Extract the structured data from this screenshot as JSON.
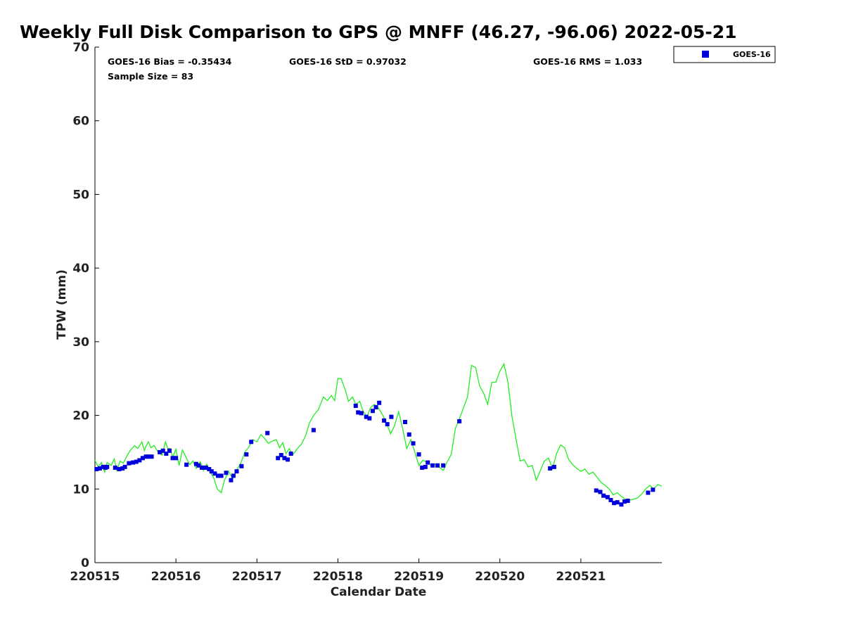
{
  "chart_data": {
    "type": "scatter",
    "title": "Weekly Full Disk Comparison to GPS @ MNFF (46.27, -96.06) 2022-05-21",
    "xlabel": "Calendar Date",
    "ylabel": "TPW (mm)",
    "xlim": [
      0,
      7
    ],
    "ylim": [
      0,
      70
    ],
    "yticks": [
      0,
      10,
      20,
      30,
      40,
      50,
      60,
      70
    ],
    "xticks": [
      {
        "value": 0,
        "label": "220515"
      },
      {
        "value": 1,
        "label": "220516"
      },
      {
        "value": 2,
        "label": "220517"
      },
      {
        "value": 3,
        "label": "220518"
      },
      {
        "value": 4,
        "label": "220519"
      },
      {
        "value": 5,
        "label": "220520"
      },
      {
        "value": 6,
        "label": "220521"
      }
    ],
    "stats": {
      "bias": "GOES-16 Bias = -0.35434",
      "std": "GOES-16 StD = 0.97032",
      "rms": "GOES-16 RMS = 1.033",
      "sample_size": "Sample Size = 83"
    },
    "legend": {
      "label": "GOES-16",
      "placement": "top-right-outside"
    },
    "colors": {
      "goes": "#0000dd",
      "gps": "#22ee22",
      "axis": "#000000"
    },
    "series": [
      {
        "name": "GOES-16",
        "kind": "scatter",
        "x": [
          0.02,
          0.06,
          0.1,
          0.13,
          0.15,
          0.25,
          0.3,
          0.34,
          0.37,
          0.42,
          0.47,
          0.51,
          0.55,
          0.59,
          0.63,
          0.66,
          0.7,
          0.8,
          0.84,
          0.88,
          0.92,
          0.96,
          1.0,
          1.13,
          1.25,
          1.28,
          1.32,
          1.37,
          1.41,
          1.44,
          1.48,
          1.52,
          1.56,
          1.62,
          1.68,
          1.71,
          1.75,
          1.81,
          1.87,
          1.93,
          2.13,
          2.26,
          2.3,
          2.34,
          2.38,
          2.42,
          2.7,
          3.22,
          3.25,
          3.29,
          3.35,
          3.39,
          3.43,
          3.47,
          3.51,
          3.57,
          3.61,
          3.66,
          3.83,
          3.88,
          3.93,
          4.0,
          4.04,
          4.08,
          4.11,
          4.17,
          4.23,
          4.3,
          4.5,
          5.62,
          5.67,
          6.19,
          6.24,
          6.28,
          6.33,
          6.37,
          6.41,
          6.45,
          6.5,
          6.54,
          6.58,
          6.83,
          6.89
        ],
        "y": [
          12.7,
          12.8,
          13.0,
          12.9,
          13.0,
          12.9,
          12.7,
          12.8,
          13.0,
          13.5,
          13.6,
          13.7,
          13.9,
          14.2,
          14.4,
          14.4,
          14.4,
          15.0,
          15.2,
          14.8,
          15.2,
          14.2,
          14.2,
          13.3,
          13.4,
          13.2,
          12.9,
          12.9,
          12.7,
          12.4,
          12.1,
          11.8,
          11.8,
          12.2,
          11.2,
          11.8,
          12.4,
          13.1,
          14.7,
          16.4,
          17.6,
          14.2,
          14.6,
          14.2,
          14.0,
          14.8,
          18.0,
          21.3,
          20.4,
          20.3,
          19.8,
          19.6,
          20.6,
          21.1,
          21.7,
          19.3,
          18.8,
          19.8,
          19.1,
          17.4,
          16.2,
          14.7,
          12.9,
          13.0,
          13.6,
          13.2,
          13.2,
          13.2,
          19.2,
          12.8,
          13.0,
          9.8,
          9.6,
          9.1,
          8.9,
          8.5,
          8.1,
          8.2,
          7.9,
          8.3,
          8.4,
          9.5,
          9.9
        ]
      },
      {
        "name": "GPS",
        "kind": "line",
        "x": [
          0.0,
          0.04,
          0.08,
          0.12,
          0.15,
          0.2,
          0.24,
          0.27,
          0.31,
          0.35,
          0.4,
          0.44,
          0.49,
          0.53,
          0.58,
          0.61,
          0.63,
          0.66,
          0.69,
          0.73,
          0.78,
          0.83,
          0.87,
          0.9,
          0.93,
          0.96,
          1.0,
          1.04,
          1.08,
          1.13,
          1.17,
          1.21,
          1.25,
          1.3,
          1.34,
          1.38,
          1.43,
          1.47,
          1.51,
          1.56,
          1.6,
          1.65,
          1.7,
          1.75,
          1.8,
          1.85,
          1.9,
          1.95,
          2.0,
          2.05,
          2.1,
          2.14,
          2.19,
          2.24,
          2.28,
          2.32,
          2.36,
          2.4,
          2.44,
          2.5,
          2.55,
          2.6,
          2.65,
          2.7,
          2.76,
          2.82,
          2.87,
          2.92,
          2.96,
          3.0,
          3.04,
          3.09,
          3.13,
          3.18,
          3.22,
          3.27,
          3.31,
          3.36,
          3.4,
          3.45,
          3.5,
          3.55,
          3.6,
          3.65,
          3.7,
          3.75,
          3.8,
          3.85,
          3.9,
          3.95,
          4.0,
          4.05,
          4.1,
          4.15,
          4.2,
          4.25,
          4.3,
          4.35,
          4.4,
          4.45,
          4.5,
          4.55,
          4.6,
          4.65,
          4.7,
          4.75,
          4.8,
          4.85,
          4.9,
          4.95,
          5.0,
          5.05,
          5.1,
          5.15,
          5.2,
          5.25,
          5.3,
          5.35,
          5.4,
          5.45,
          5.5,
          5.55,
          5.6,
          5.65,
          5.7,
          5.75,
          5.8,
          5.85,
          5.9,
          5.95,
          6.0,
          6.05,
          6.1,
          6.15,
          6.2,
          6.25,
          6.3,
          6.35,
          6.4,
          6.45,
          6.5,
          6.55,
          6.6,
          6.65,
          6.7,
          6.75,
          6.8,
          6.85,
          6.9,
          6.95,
          7.0
        ],
        "y": [
          13.9,
          13.0,
          13.6,
          12.3,
          13.6,
          13.2,
          14.1,
          12.5,
          13.8,
          13.5,
          14.6,
          15.3,
          15.9,
          15.5,
          16.4,
          15.2,
          15.8,
          16.4,
          15.6,
          15.9,
          15.0,
          14.6,
          16.4,
          15.5,
          15.5,
          14.3,
          15.4,
          13.2,
          15.3,
          14.2,
          13.3,
          13.8,
          12.8,
          13.7,
          12.5,
          13.4,
          12.2,
          11.4,
          10.0,
          9.5,
          11.2,
          12.4,
          11.4,
          12.6,
          13.5,
          15.0,
          15.7,
          16.7,
          16.4,
          17.4,
          16.8,
          16.2,
          16.5,
          16.7,
          15.6,
          16.3,
          14.8,
          15.5,
          14.6,
          15.5,
          16.1,
          17.2,
          19.0,
          20.0,
          20.8,
          22.5,
          22.0,
          22.7,
          22.0,
          25.0,
          25.0,
          23.5,
          21.9,
          22.5,
          21.5,
          21.9,
          20.6,
          19.8,
          21.0,
          21.5,
          21.0,
          20.1,
          19.0,
          17.5,
          18.6,
          20.5,
          18.2,
          15.5,
          16.7,
          15.0,
          13.2,
          13.9,
          13.6,
          13.2,
          13.4,
          13.0,
          12.5,
          13.7,
          14.7,
          18.2,
          19.5,
          21.0,
          22.5,
          26.8,
          26.5,
          24.0,
          23.0,
          21.5,
          24.5,
          24.5,
          26.0,
          27.0,
          24.5,
          19.8,
          16.8,
          13.8,
          14.0,
          13.0,
          13.2,
          11.2,
          12.5,
          13.8,
          14.2,
          12.8,
          14.8,
          16.0,
          15.6,
          14.0,
          13.3,
          12.8,
          12.4,
          12.7,
          12.0,
          12.3,
          11.6,
          10.9,
          10.5,
          10.0,
          9.2,
          9.5,
          9.0,
          8.6,
          8.5,
          8.6,
          8.8,
          9.3,
          10.0,
          10.5,
          10.0,
          10.6,
          10.4
        ]
      }
    ]
  }
}
